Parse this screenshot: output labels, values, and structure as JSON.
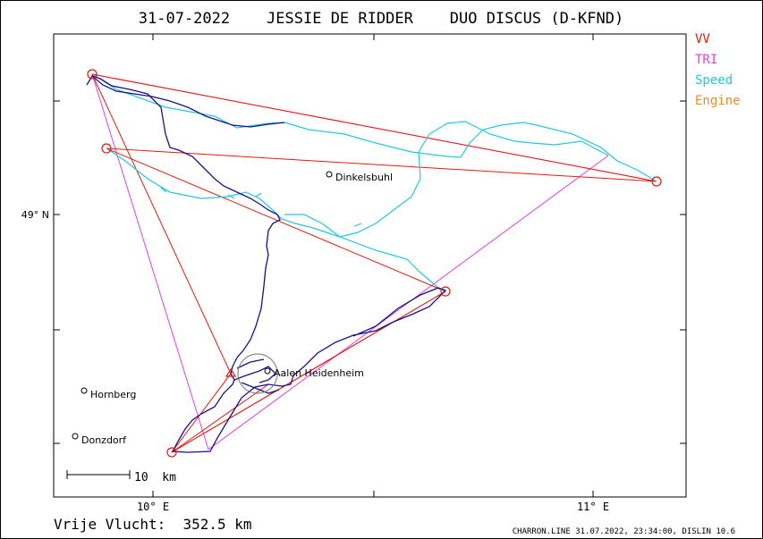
{
  "title": "31-07-2022    JESSIE DE RIDDER    DUO DISCUS (D-KFND)",
  "legend": [
    {
      "label": "VV",
      "color": "#e8180c"
    },
    {
      "label": "TRI",
      "color": "#e040e0"
    },
    {
      "label": "Speed",
      "color": "#20c8e0"
    },
    {
      "label": "Engine",
      "color": "#f08a20"
    }
  ],
  "axes": {
    "y_label": "49° N",
    "x_labels": [
      "10° E",
      "11° E"
    ]
  },
  "scale": {
    "label": "10  km"
  },
  "towns": [
    "Dinkelsbuhl",
    "Aalen Heidenheim",
    "Hornberg",
    "Donzdorf"
  ],
  "footer": {
    "distance": "Vrije Vlucht:  352.5 km",
    "credit": "CHARRON.LINE 31.07.2022, 23:34:00, DISLIN 10.6"
  },
  "colors": {
    "frame": "#000000",
    "track": "#1a0f8a",
    "speed": "#20c8e0",
    "vv": "#e8180c",
    "tri": "#e040e0"
  }
}
